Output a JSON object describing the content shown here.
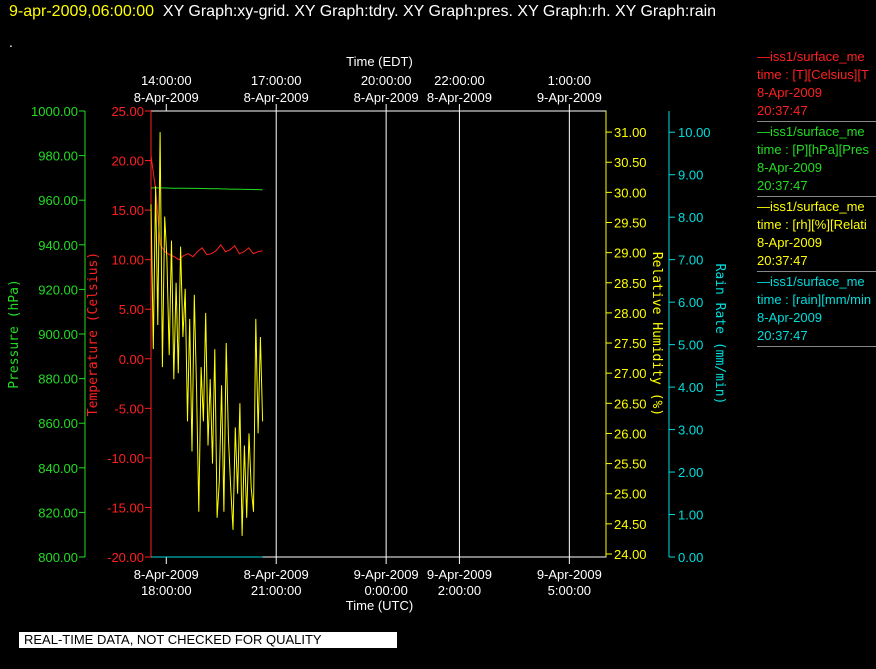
{
  "header": {
    "date": "9-apr-2009,06:00:00",
    "graphs": "XY Graph:xy-grid.  XY Graph:tdry.  XY Graph:pres.  XY Graph:rh.  XY Graph:rain",
    "second_line": "."
  },
  "notice": "REAL-TIME DATA, NOT CHECKED FOR QUALITY",
  "legend": [
    {
      "title": "—iss1/surface_me",
      "field": "time : [T][Celsius][T",
      "date": "8-Apr-2009",
      "time": "20:37:47",
      "color": "#ff2020"
    },
    {
      "title": "—iss1/surface_me",
      "field": "time : [P][hPa][Pres",
      "date": "8-Apr-2009",
      "time": "20:37:47",
      "color": "#22dd22"
    },
    {
      "title": "—iss1/surface_me",
      "field": "time : [rh][%][Relati",
      "date": "8-Apr-2009",
      "time": "20:37:47",
      "color": "#ffff00"
    },
    {
      "title": "—iss1/surface_me",
      "field": "time : [rain][mm/min",
      "date": "8-Apr-2009",
      "time": "20:37:47",
      "color": "#00dddd"
    }
  ],
  "chart_data": {
    "type": "line",
    "grid": true,
    "x_top": {
      "label": "Time (EDT)",
      "ticks": [
        {
          "time": "14:00:00",
          "date": "8-Apr-2009"
        },
        {
          "time": "17:00:00",
          "date": "8-Apr-2009"
        },
        {
          "time": "20:00:00",
          "date": "8-Apr-2009"
        },
        {
          "time": "22:00:00",
          "date": "8-Apr-2009"
        },
        {
          "time": "1:00:00",
          "date": "9-Apr-2009"
        }
      ]
    },
    "x_bottom": {
      "label": "Time (UTC)",
      "range": [
        "2009-04-08 17:35",
        "2009-04-09 06:00"
      ],
      "ticks": [
        {
          "t": "2009-04-08 18:00",
          "date": "8-Apr-2009",
          "time": "18:00:00"
        },
        {
          "t": "2009-04-08 21:00",
          "date": "8-Apr-2009",
          "time": "21:00:00"
        },
        {
          "t": "2009-04-09 00:00",
          "date": "9-Apr-2009",
          "time": "0:00:00"
        },
        {
          "t": "2009-04-09 02:00",
          "date": "9-Apr-2009",
          "time": "2:00:00"
        },
        {
          "t": "2009-04-09 05:00",
          "date": "9-Apr-2009",
          "time": "5:00:00"
        }
      ]
    },
    "axes": {
      "pressure": {
        "label": "Pressure (hPa)",
        "ylim": [
          800,
          1000
        ],
        "color": "#22dd22",
        "ticks": [
          "800.00",
          "820.00",
          "840.00",
          "860.00",
          "880.00",
          "900.00",
          "920.00",
          "940.00",
          "960.00",
          "980.00",
          "1000.00"
        ]
      },
      "temperature": {
        "label": "Temperature (Celsius)",
        "ylim": [
          -20,
          25
        ],
        "color": "#ff2020",
        "ticks": [
          "-20.00",
          "-15.00",
          "-10.00",
          "-5.00",
          "0.00",
          "5.00",
          "10.00",
          "15.00",
          "20.00",
          "25.00"
        ]
      },
      "rh": {
        "label": "Relative Humidity (%)",
        "ylim": [
          23.95,
          31.35
        ],
        "color": "#ffff00",
        "ticks": [
          "24.00",
          "24.50",
          "25.00",
          "25.50",
          "26.00",
          "26.50",
          "27.00",
          "27.50",
          "28.00",
          "28.50",
          "29.00",
          "29.50",
          "30.00",
          "30.50",
          "31.00"
        ]
      },
      "rain": {
        "label": "Rain Rate (mm/min)",
        "ylim": [
          0,
          10.5
        ],
        "color": "#00dddd",
        "ticks": [
          "0.00",
          "1.00",
          "2.00",
          "3.00",
          "4.00",
          "5.00",
          "6.00",
          "7.00",
          "8.00",
          "9.00",
          "10.00"
        ]
      }
    },
    "series": [
      {
        "key": "pressure",
        "start": "2009-04-08 17:35",
        "end": "2009-04-08 20:37:47",
        "values": [
          965.5,
          965.5,
          965.4,
          965.4,
          965.3,
          965.2,
          965.1,
          965.0,
          964.9,
          964.8,
          964.7
        ]
      },
      {
        "key": "temperature",
        "start": "2009-04-08 17:35",
        "end": "2009-04-08 20:37:47",
        "values": [
          20.5,
          17.0,
          11.5,
          10.8,
          10.5,
          10.3,
          10.0,
          10.4,
          10.6,
          10.3,
          10.8,
          11.2,
          10.5,
          10.6,
          10.9,
          11.5,
          10.8,
          11.0,
          11.4,
          10.6,
          10.8,
          11.2,
          10.6,
          10.8,
          10.9
        ]
      },
      {
        "key": "rh",
        "start": "2009-04-08 17:35",
        "end": "2009-04-08 20:37:47",
        "values": [
          29.8,
          27.4,
          30.1,
          27.8,
          31.0,
          27.1,
          29.6,
          28.9,
          27.3,
          29.2,
          26.9,
          28.5,
          27.0,
          29.1,
          27.6,
          28.4,
          26.2,
          27.9,
          25.7,
          28.3,
          26.7,
          24.7,
          27.1,
          26.2,
          28.0,
          25.8,
          26.9,
          25.5,
          27.4,
          24.6,
          25.2,
          26.8,
          24.7,
          27.5,
          25.9,
          25.1,
          24.4,
          26.1,
          25.0,
          26.5,
          24.3,
          25.8,
          24.6,
          26.0,
          25.1,
          24.7,
          27.9,
          26.0,
          27.6,
          26.2
        ]
      },
      {
        "key": "rain",
        "start": "2009-04-08 17:35",
        "end": "2009-04-08 20:37:47",
        "values": [
          0.0,
          0.0,
          0.0,
          0.0,
          0.0,
          0.0
        ]
      }
    ]
  }
}
